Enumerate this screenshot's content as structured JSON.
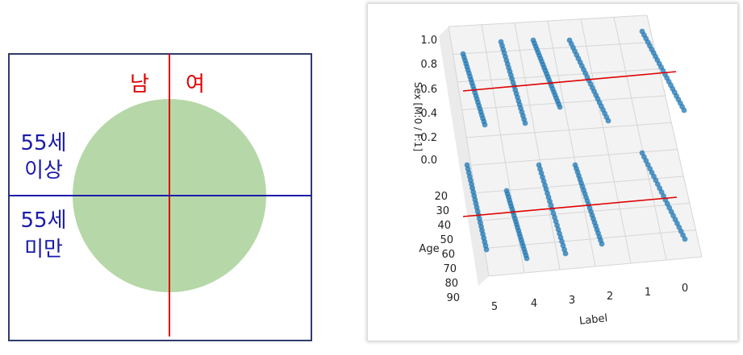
{
  "left_diagram": {
    "label_male": "남",
    "label_female": "여",
    "label_over_55_line1": "55세",
    "label_over_55_line2": "이상",
    "label_under_55_line1": "55세",
    "label_under_55_line2": "미만",
    "colors": {
      "circle_fill": "#b6d7a8",
      "vertical_divider": "#e00000",
      "horizontal_divider": "#1a1aaa",
      "frame": "#2f3b6b",
      "sex_label": "#e00000",
      "age_label": "#1a1aaa"
    }
  },
  "plot3d": {
    "zlabel": "Sex [M:0 / F:1]",
    "ylabel": "Age",
    "xlabel": "Label",
    "z_ticks": [
      "1.0",
      "0.8",
      "0.6",
      "0.4",
      "0.2",
      "0.0"
    ],
    "age_ticks": [
      "20",
      "30",
      "40",
      "50",
      "60",
      "70",
      "80",
      "90"
    ],
    "label_ticks": [
      "5",
      "4",
      "3",
      "2",
      "1",
      "0"
    ],
    "point_color": "#1f77b4",
    "reference_line_color": "#e00000"
  }
}
